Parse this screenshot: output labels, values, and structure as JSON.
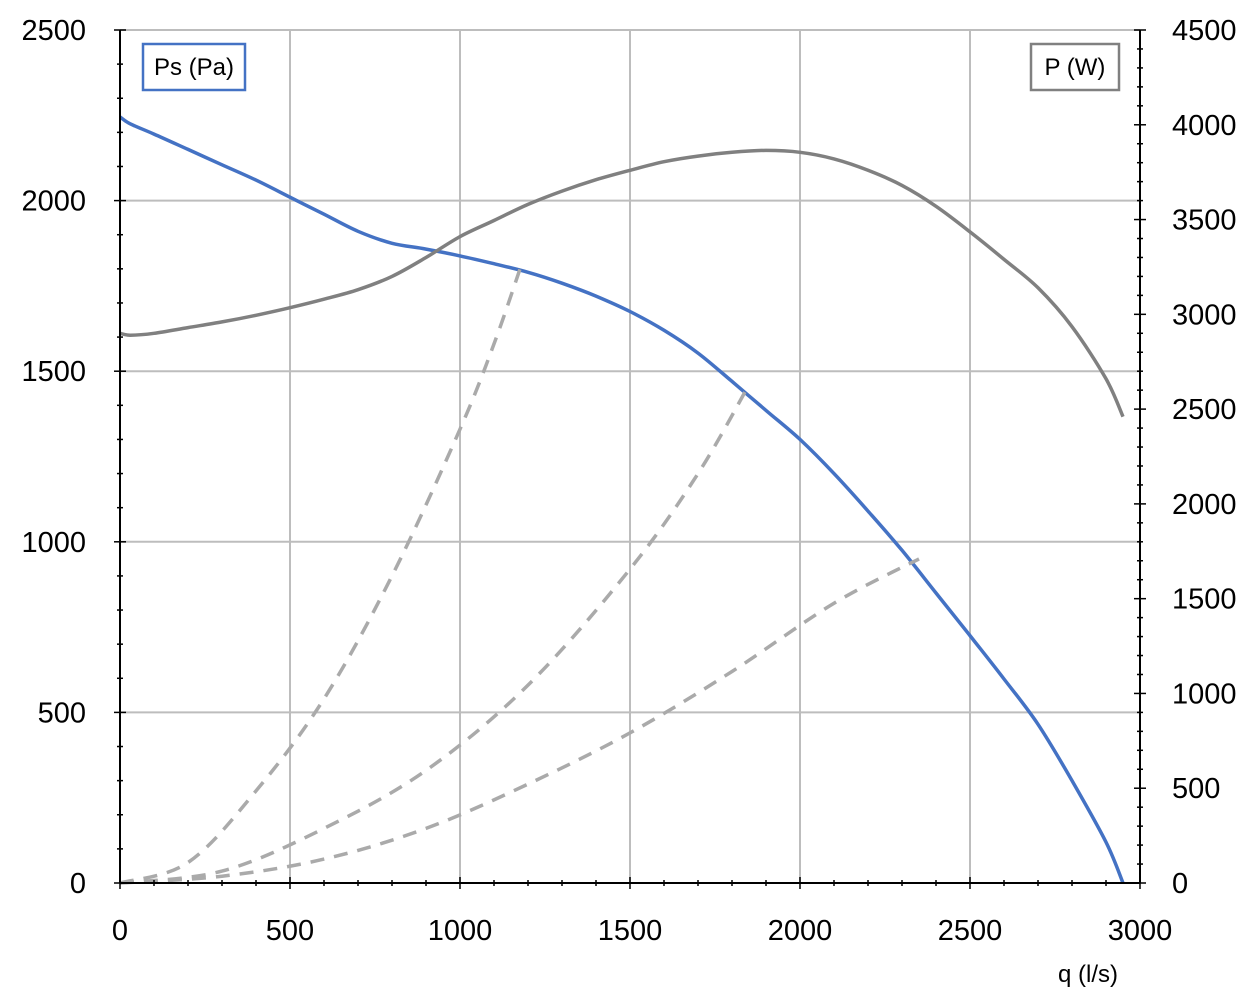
{
  "chart_data": {
    "type": "line",
    "xlabel": "q (l/s)",
    "x_range": [
      0,
      3000
    ],
    "x_ticks": [
      0,
      500,
      1000,
      1500,
      2000,
      2500,
      3000
    ],
    "x_tick_labels": [
      "0",
      "500",
      "1000",
      "1500",
      "2000",
      "2500",
      "3000"
    ],
    "y_left": {
      "range": [
        0,
        2500
      ],
      "ticks": [
        0,
        500,
        1000,
        1500,
        2000,
        2500
      ],
      "tick_labels": [
        "0",
        "500",
        "1000",
        "1500",
        "2000",
        "2500"
      ]
    },
    "y_right": {
      "range": [
        0,
        4500
      ],
      "ticks": [
        0,
        500,
        1000,
        1500,
        2000,
        2500,
        3000,
        3500,
        4000,
        4500
      ],
      "tick_labels": [
        "0",
        "500",
        "1000",
        "1500",
        "2000",
        "2500",
        "3000",
        "3500",
        "4000",
        "4500"
      ]
    },
    "grid": true,
    "legend": [
      {
        "label": "Ps (Pa)",
        "color": "#4472c4",
        "placement": "top-left"
      },
      {
        "label": "P (W)",
        "color": "#808080",
        "placement": "top-right"
      }
    ],
    "series": [
      {
        "axis": "left",
        "color": "#4472c4",
        "style": "solid",
        "x": [
          0,
          30,
          100,
          200,
          300,
          400,
          500,
          600,
          700,
          800,
          900,
          1000,
          1100,
          1200,
          1300,
          1400,
          1500,
          1600,
          1700,
          1800,
          1900,
          2000,
          2100,
          2200,
          2300,
          2400,
          2500,
          2600,
          2700,
          2800,
          2900,
          2950
        ],
        "y": [
          2245,
          2225,
          2195,
          2150,
          2105,
          2060,
          2010,
          1960,
          1910,
          1875,
          1858,
          1838,
          1815,
          1790,
          1758,
          1720,
          1675,
          1620,
          1553,
          1470,
          1385,
          1300,
          1200,
          1090,
          975,
          850,
          725,
          598,
          465,
          300,
          120,
          0
        ]
      },
      {
        "axis": "right",
        "color": "#808080",
        "style": "solid",
        "x": [
          0,
          30,
          100,
          200,
          300,
          400,
          500,
          600,
          700,
          800,
          900,
          1000,
          1100,
          1200,
          1300,
          1400,
          1500,
          1600,
          1700,
          1800,
          1900,
          2000,
          2100,
          2200,
          2300,
          2400,
          2500,
          2600,
          2700,
          2800,
          2900,
          2950
        ],
        "y": [
          2900,
          2890,
          2900,
          2930,
          2960,
          2995,
          3035,
          3080,
          3130,
          3200,
          3300,
          3410,
          3495,
          3580,
          3650,
          3710,
          3760,
          3805,
          3835,
          3855,
          3865,
          3855,
          3820,
          3760,
          3680,
          3570,
          3435,
          3290,
          3140,
          2935,
          2660,
          2460
        ]
      },
      {
        "axis": "left",
        "color": "#aaaaaa",
        "style": "dashed",
        "x": [
          0,
          200,
          400,
          600,
          800,
          1000,
          1100,
          1180
        ],
        "y": [
          0,
          60,
          270,
          540,
          900,
          1330,
          1580,
          1810
        ]
      },
      {
        "axis": "left",
        "color": "#aaaaaa",
        "style": "dashed",
        "x": [
          0,
          300,
          600,
          900,
          1200,
          1500,
          1700,
          1850
        ],
        "y": [
          0,
          35,
          160,
          330,
          580,
          920,
          1200,
          1460
        ]
      },
      {
        "axis": "left",
        "color": "#aaaaaa",
        "style": "dashed",
        "x": [
          0,
          300,
          600,
          900,
          1200,
          1500,
          1800,
          2100,
          2350
        ],
        "y": [
          0,
          20,
          70,
          160,
          290,
          440,
          620,
          820,
          950
        ]
      }
    ]
  }
}
